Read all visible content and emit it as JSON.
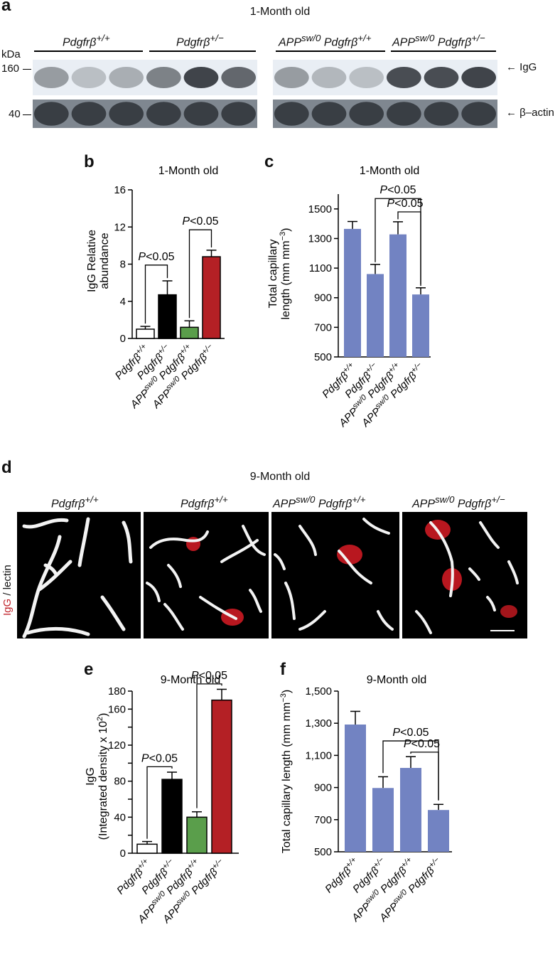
{
  "panel_a": {
    "letter": "a",
    "title": "1-Month old",
    "kda": "kDa",
    "marker_160": "160",
    "marker_40": "40",
    "group_labels": [
      "Pdgfrβ+/+",
      "Pdgfrβ+/−",
      "APPsw/0 Pdgfrβ+/+",
      "APPsw/0 Pdgfrβ+/−"
    ],
    "igg_label": "← IgG",
    "actin_label": "← β–actin",
    "igg_band_intensity": [
      0.45,
      0.25,
      0.35,
      0.6,
      0.95,
      0.75,
      0.45,
      0.3,
      0.25,
      0.9,
      0.9,
      0.95
    ]
  },
  "panel_b": {
    "letter": "b",
    "chart_data": {
      "type": "bar",
      "title": "1-Month old",
      "ylabel": "IgG Relative abundance",
      "ylim": [
        0,
        16
      ],
      "yticks": [
        0,
        4,
        8,
        12,
        16
      ],
      "categories": [
        "Pdgfrβ+/+",
        "Pdgfrβ+/−",
        "APPsw/0 Pdgfrβ+/+",
        "APPsw/0 Pdgfrβ+/−"
      ],
      "values": [
        1.0,
        4.7,
        1.2,
        8.8
      ],
      "errors": [
        0.3,
        1.5,
        0.7,
        0.7
      ],
      "colors": [
        "#ffffff",
        "#000000",
        "#5a9e4b",
        "#b42025"
      ],
      "annotations": [
        "P<0.05",
        "P<0.05"
      ]
    }
  },
  "panel_c": {
    "letter": "c",
    "chart_data": {
      "type": "bar",
      "title": "1-Month old",
      "ylabel": "Total capillary length (mm mm−3)",
      "ylim": [
        500,
        1600
      ],
      "yticks": [
        500,
        700,
        900,
        1100,
        1300,
        1500
      ],
      "categories": [
        "Pdgfrβ+/+",
        "Pdgfrβ+/−",
        "APPsw/0 Pdgfrβ+/+",
        "APPsw/0 Pdgfrβ+/−"
      ],
      "values": [
        1365,
        1060,
        1328,
        922
      ],
      "errors": [
        50,
        65,
        85,
        45
      ],
      "colors": [
        "#7283c2",
        "#7283c2",
        "#7283c2",
        "#7283c2"
      ],
      "annotations": [
        "P<0.05",
        "P<0.05"
      ]
    }
  },
  "panel_d": {
    "letter": "d",
    "title": "9-Month old",
    "image_labels": [
      "Pdgfrβ+/+",
      "Pdgfrβ+/+",
      "APPsw/0 Pdgfrβ+/+",
      "APPsw/0 Pdgfrβ+/−"
    ],
    "side_label_red": "IgG",
    "side_label_rest": " / lectin"
  },
  "panel_e": {
    "letter": "e",
    "chart_data": {
      "type": "bar",
      "title": "9-Month old",
      "ylabel": "IgG (Integrated density x 102)",
      "ylim": [
        0,
        180
      ],
      "yticks": [
        0,
        20,
        40,
        60,
        80,
        100,
        120,
        140,
        160,
        180
      ],
      "ytick_labels": [
        "0",
        "",
        "40",
        "",
        "80",
        "",
        "120",
        "",
        "160",
        "180"
      ],
      "categories": [
        "Pdgfrβ+/+",
        "Pdgfrβ+/−",
        "APPsw/0 Pdgfrβ+/+",
        "APPsw/0 Pdgfrβ+/−"
      ],
      "values": [
        10,
        82,
        40,
        170
      ],
      "errors": [
        3,
        8,
        6,
        12
      ],
      "colors": [
        "#ffffff",
        "#000000",
        "#5a9e4b",
        "#b42025"
      ],
      "annotations": [
        "P<0.05",
        "P<0.05"
      ]
    }
  },
  "panel_f": {
    "letter": "f",
    "chart_data": {
      "type": "bar",
      "title": "9-Month old",
      "ylabel": "Total capillary length (mm mm−3)",
      "ylim": [
        500,
        1500
      ],
      "yticks": [
        500,
        700,
        900,
        1100,
        1300,
        1500
      ],
      "ytick_labels": [
        "500",
        "700",
        "900",
        "1,100",
        "1,300",
        "1,500"
      ],
      "categories": [
        "Pdgfrβ+/+",
        "Pdgfrβ+/−",
        "APPsw/0 Pdgfrβ+/+",
        "APPsw/0 Pdgfrβ+/−"
      ],
      "values": [
        1292,
        897,
        1022,
        760
      ],
      "errors": [
        82,
        70,
        70,
        35
      ],
      "colors": [
        "#7283c2",
        "#7283c2",
        "#7283c2",
        "#7283c2"
      ],
      "annotations": [
        "P<0.05",
        "P<0.05"
      ]
    }
  }
}
